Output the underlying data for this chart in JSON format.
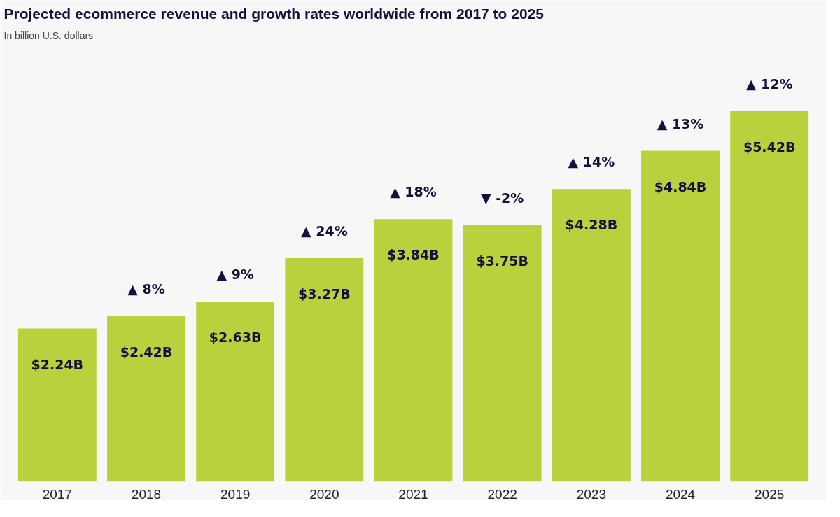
{
  "chart_data": {
    "type": "bar",
    "title": "Projected ecommerce revenue and growth rates worldwide from 2017 to 2025",
    "subtitle": "In billion U.S. dollars",
    "categories": [
      "2017",
      "2018",
      "2019",
      "2020",
      "2021",
      "2022",
      "2023",
      "2024",
      "2025"
    ],
    "values": [
      2.24,
      2.42,
      2.63,
      3.27,
      3.84,
      3.75,
      4.28,
      4.84,
      5.42
    ],
    "value_labels": [
      "$2.24B",
      "$2.42B",
      "$2.63B",
      "$3.27B",
      "$3.84B",
      "$3.75B",
      "$4.28B",
      "$4.84B",
      "$5.42B"
    ],
    "color": "#b8d13c",
    "grid": false,
    "annotations": [
      {
        "text": "▲ 8%",
        "x": "2018",
        "y": 2.42
      },
      {
        "text": "▲ 9%",
        "x": "2019",
        "y": 2.63
      },
      {
        "text": "▲ 24%",
        "x": "2020",
        "y": 3.27
      },
      {
        "text": "▲ 18%",
        "x": "2021",
        "y": 3.84
      },
      {
        "text": "▼ -2%",
        "x": "2022",
        "y": 3.75
      },
      {
        "text": "▲ 14%",
        "x": "2023",
        "y": 4.28
      },
      {
        "text": "▲ 13%",
        "x": "2024",
        "y": 4.84
      },
      {
        "text": "▲ 12%",
        "x": "2025",
        "y": 5.42
      }
    ]
  }
}
